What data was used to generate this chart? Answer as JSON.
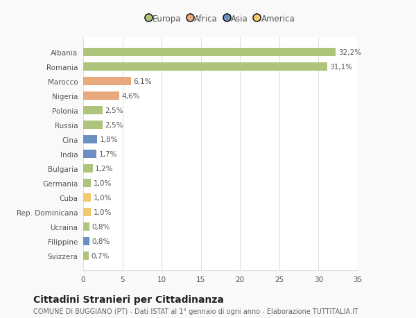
{
  "categories": [
    "Albania",
    "Romania",
    "Marocco",
    "Nigeria",
    "Polonia",
    "Russia",
    "Cina",
    "India",
    "Bulgaria",
    "Germania",
    "Cuba",
    "Rep. Dominicana",
    "Ucraina",
    "Filippine",
    "Svizzera"
  ],
  "values": [
    32.2,
    31.1,
    6.1,
    4.6,
    2.5,
    2.5,
    1.8,
    1.7,
    1.2,
    1.0,
    1.0,
    1.0,
    0.8,
    0.8,
    0.7
  ],
  "labels": [
    "32,2%",
    "31,1%",
    "6,1%",
    "4,6%",
    "2,5%",
    "2,5%",
    "1,8%",
    "1,7%",
    "1,2%",
    "1,0%",
    "1,0%",
    "1,0%",
    "0,8%",
    "0,8%",
    "0,7%"
  ],
  "colors": [
    "#adc47a",
    "#adc47a",
    "#e8a97e",
    "#e8a97e",
    "#adc47a",
    "#adc47a",
    "#6a8fc0",
    "#6a8fc0",
    "#adc47a",
    "#adc47a",
    "#f2c96e",
    "#f2c96e",
    "#adc47a",
    "#6a8fc0",
    "#adc47a"
  ],
  "continents": [
    "Europa",
    "Africa",
    "Asia",
    "America"
  ],
  "legend_colors": [
    "#adc47a",
    "#e8a97e",
    "#6a8fc0",
    "#f2c96e"
  ],
  "title": "Cittadini Stranieri per Cittadinanza",
  "subtitle": "COMUNE DI BUGGIANO (PT) - Dati ISTAT al 1° gennaio di ogni anno - Elaborazione TUTTITALIA.IT",
  "xlim": [
    0,
    35
  ],
  "xticks": [
    0,
    5,
    10,
    15,
    20,
    25,
    30,
    35
  ],
  "bg_color": "#f9f9f9",
  "plot_bg_color": "#ffffff",
  "grid_color": "#e0e0e0",
  "bar_height": 0.55,
  "label_fontsize": 7.5,
  "tick_fontsize": 7.5,
  "title_fontsize": 10,
  "subtitle_fontsize": 7
}
